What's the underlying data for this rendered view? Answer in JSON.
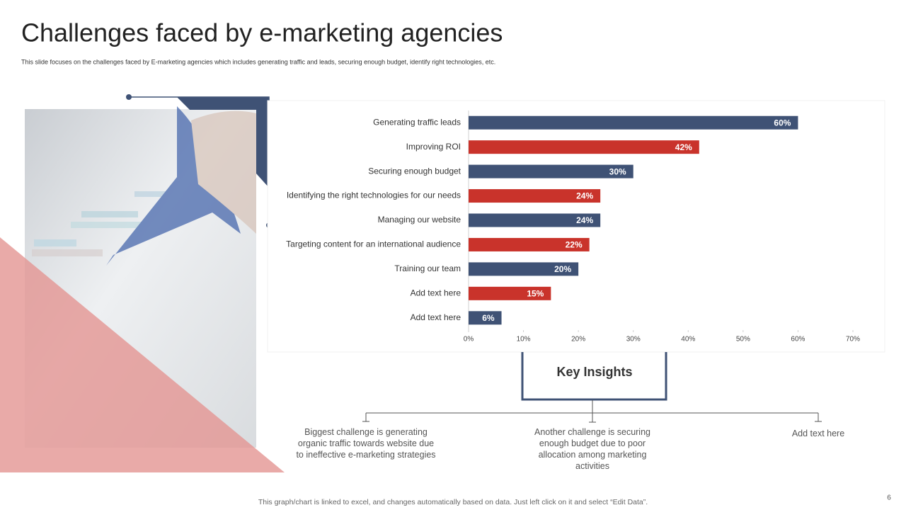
{
  "chart_data": {
    "type": "bar",
    "orientation": "horizontal",
    "title": "Challenges faced by e-marketing agencies",
    "subtitle": "This slide focuses on the challenges faced by E-marketing  agencies which includes generating traffic and leads, securing enough budget, identify right technologies, etc.",
    "categories": [
      "Generating traffic leads",
      "Improving ROI",
      "Securing enough budget",
      "Identifying the right technologies for our needs",
      "Managing our website",
      "Targeting content for an international audience",
      "Training our team",
      "Add text here",
      "Add text here"
    ],
    "values": [
      60,
      42,
      30,
      24,
      24,
      22,
      20,
      15,
      6
    ],
    "value_labels": [
      "60%",
      "42%",
      "30%",
      "24%",
      "24%",
      "22%",
      "20%",
      "15%",
      "6%"
    ],
    "colors": [
      "#3f5275",
      "#c9332b",
      "#3f5275",
      "#c9332b",
      "#3f5275",
      "#c9332b",
      "#3f5275",
      "#c9332b",
      "#3f5275"
    ],
    "xlim": [
      0,
      70
    ],
    "xticks": [
      {
        "value": 0,
        "label": "0%"
      },
      {
        "value": 10,
        "label": "10%"
      },
      {
        "value": 20,
        "label": "20%"
      },
      {
        "value": 30,
        "label": "30%"
      },
      {
        "value": 40,
        "label": "40%"
      },
      {
        "value": 50,
        "label": "50%"
      },
      {
        "value": 60,
        "label": "60%"
      },
      {
        "value": 70,
        "label": "70%"
      }
    ],
    "grid": false
  },
  "insights": {
    "heading": "Key Insights",
    "items": [
      "Biggest challenge is generating organic traffic towards website due to ineffective e-marketing strategies",
      "Another challenge is securing enough budget due to poor allocation among marketing activities",
      "Add text here"
    ]
  },
  "footer": "This graph/chart is linked to excel, and changes automatically based on data. Just left click on it and select “Edit Data”.",
  "page_number": "6"
}
